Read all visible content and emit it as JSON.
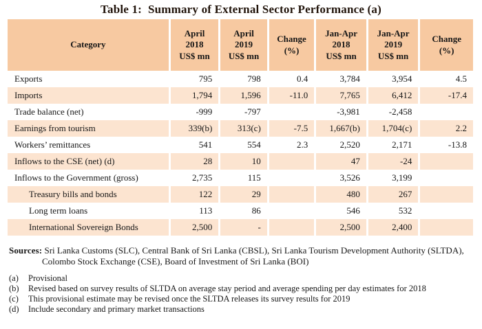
{
  "title": "Table 1:  Summary of External Sector Performance (a)",
  "colors": {
    "header_bg": "#f7c9a1",
    "stripe_bg": "#fce4d0",
    "text": "#161616"
  },
  "table": {
    "columns": [
      {
        "label": "Category"
      },
      {
        "label": "April\n2018\nUS$ mn"
      },
      {
        "label": "April\n2019\nUS$ mn"
      },
      {
        "label": "Change\n(%)"
      },
      {
        "label": "Jan-Apr\n2018\nUS$ mn"
      },
      {
        "label": "Jan-Apr\n2019\nUS$ mn"
      },
      {
        "label": "Change\n(%)"
      }
    ],
    "rows": [
      {
        "category": "Exports",
        "values": [
          "795",
          "798",
          "0.4",
          "3,784",
          "3,954",
          "4.5"
        ]
      },
      {
        "category": "Imports",
        "values": [
          "1,794",
          "1,596",
          "-11.0",
          "7,765",
          "6,412",
          "-17.4"
        ]
      },
      {
        "category": "Trade balance (net)",
        "values": [
          "-999",
          "-797",
          "",
          "-3,981",
          "-2,458",
          ""
        ]
      },
      {
        "category": "Earnings from tourism",
        "values": [
          "339(b)",
          "313(c)",
          "-7.5",
          "1,667(b)",
          "1,704(c)",
          "2.2"
        ]
      },
      {
        "category": "Workers’ remittances",
        "values": [
          "541",
          "554",
          "2.3",
          "2,520",
          "2,171",
          "-13.8"
        ]
      },
      {
        "category": "Inflows to the CSE (net) (d)",
        "values": [
          "28",
          "10",
          "",
          "47",
          "-24",
          ""
        ]
      },
      {
        "category": "Inflows to the Government (gross)",
        "values": [
          "2,735",
          "115",
          "",
          "3,526",
          "3,199",
          ""
        ]
      },
      {
        "category": "Treasury bills and bonds",
        "values": [
          "122",
          "29",
          "",
          "480",
          "267",
          ""
        ]
      },
      {
        "category": "Long term loans",
        "values": [
          "113",
          "86",
          "",
          "546",
          "532",
          ""
        ]
      },
      {
        "category": "International Sovereign Bonds",
        "values": [
          "2,500",
          "-",
          "",
          "2,500",
          "2,400",
          ""
        ]
      }
    ]
  },
  "sources": {
    "label": "Sources:",
    "text": " Sri Lanka Customs (SLC), Central Bank of Sri Lanka (CBSL), Sri Lanka Tourism Development Authority (SLTDA), Colombo Stock Exchange (CSE), Board of Investment of Sri Lanka (BOI)"
  },
  "footnotes": [
    {
      "marker": "(a)",
      "text": "Provisional"
    },
    {
      "marker": "(b)",
      "text": "Revised based on survey results of SLTDA on average stay period and average spending per day estimates for 2018"
    },
    {
      "marker": "(c)",
      "text": "This provisional estimate may be revised once the SLTDA releases its survey results for 2019"
    },
    {
      "marker": "(d)",
      "text": "Include secondary and primary market transactions"
    }
  ]
}
